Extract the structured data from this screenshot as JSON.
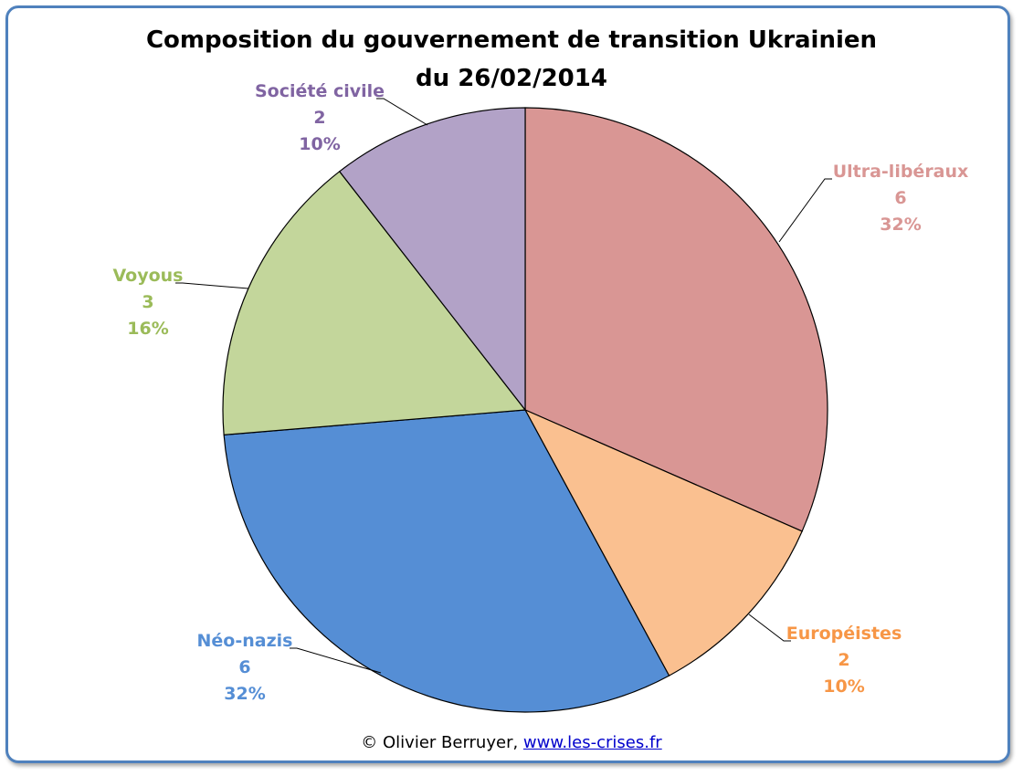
{
  "chart_data": {
    "type": "pie",
    "title": "Composition du gouvernement de transition Ukrainien",
    "subtitle": "du 26/02/2014",
    "slices": [
      {
        "label": "Ultra-libéraux",
        "value": 6,
        "percent": "32%",
        "color": "#d99694",
        "textColor": "#d99694"
      },
      {
        "label": "Européistes",
        "value": 2,
        "percent": "10%",
        "color": "#fac090",
        "textColor": "#f79646"
      },
      {
        "label": "Néo-nazis",
        "value": 6,
        "percent": "32%",
        "color": "#558ed5",
        "textColor": "#558ed5"
      },
      {
        "label": "Voyous",
        "value": 3,
        "percent": "16%",
        "color": "#c3d69b",
        "textColor": "#9bbb59"
      },
      {
        "label": "Société civile",
        "value": 2,
        "percent": "10%",
        "color": "#b2a2c7",
        "textColor": "#8064a2"
      }
    ],
    "start": "12 o'clock",
    "direction": "clockwise",
    "legend": "none",
    "data_labels": "outside with leader lines"
  },
  "credit": {
    "prefix": "© Olivier Berruyer,",
    "link": "www.les-crises.fr"
  }
}
